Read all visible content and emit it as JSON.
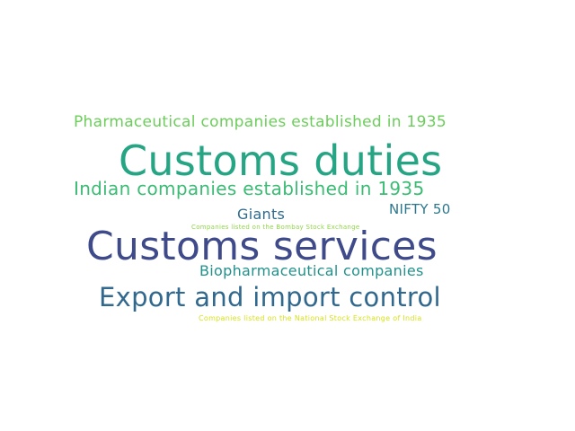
{
  "word_cloud": {
    "words": [
      {
        "id": "pharma",
        "text": "Pharmaceutical companies established in 1935",
        "color": "#6cce5a"
      },
      {
        "id": "duties",
        "text": "Customs duties",
        "color": "#25a584"
      },
      {
        "id": "indian",
        "text": "Indian companies established in 1935",
        "color": "#3cbb75"
      },
      {
        "id": "nifty",
        "text": "NIFTY 50",
        "color": "#2a788e"
      },
      {
        "id": "giants",
        "text": "Giants",
        "color": "#2f6b8e"
      },
      {
        "id": "bse",
        "text": "Companies listed on the Bombay Stock Exchange",
        "color": "#8fd744"
      },
      {
        "id": "services",
        "text": "Customs services",
        "color": "#3e4a89"
      },
      {
        "id": "biopharma",
        "text": "Biopharmaceutical companies",
        "color": "#21918c"
      },
      {
        "id": "export",
        "text": "Export and import control",
        "color": "#31688e"
      },
      {
        "id": "nse",
        "text": "Companies listed on the National Stock Exchange of India",
        "color": "#d8e219"
      }
    ]
  }
}
